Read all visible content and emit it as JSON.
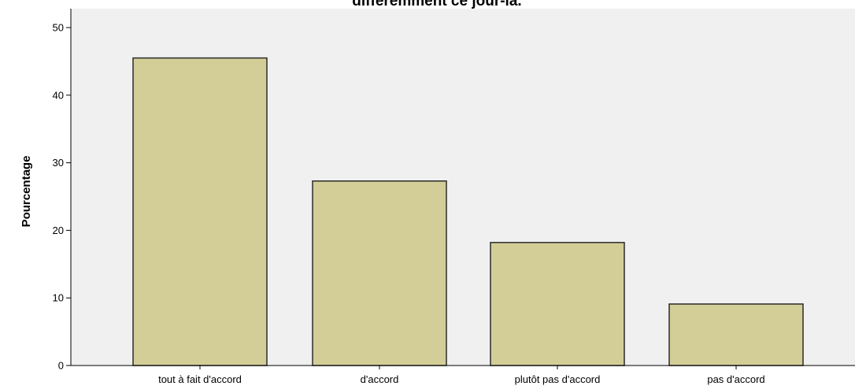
{
  "chart_data": {
    "type": "bar",
    "title": "différemment ce jour-là.",
    "xlabel": "",
    "ylabel": "Pourcentage",
    "categories": [
      "tout à fait d'accord",
      "d'accord",
      "plutôt pas d'accord",
      "pas d'accord"
    ],
    "values": [
      45.5,
      27.3,
      18.2,
      9.1
    ],
    "yticks": [
      "0",
      "10",
      "20",
      "30",
      "40",
      "50"
    ],
    "ylim": [
      0,
      53
    ],
    "grid": false,
    "legend": "none",
    "colors": {
      "bar_fill": "#d3ce97",
      "bar_stroke": "#2b2b2b",
      "plot_background": "#f0f0f0",
      "axis": "#000000"
    }
  }
}
